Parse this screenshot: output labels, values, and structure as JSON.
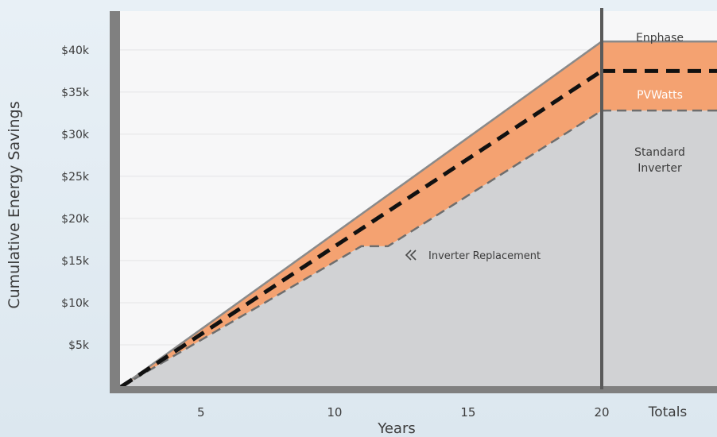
{
  "chart_data": {
    "type": "area",
    "title": "",
    "xlabel": "Years",
    "ylabel": "Cumulative Energy Savings",
    "xlim": [
      2,
      20
    ],
    "ylim": [
      0,
      43000
    ],
    "x_ticks": [
      {
        "value": 5,
        "label": "5"
      },
      {
        "value": 10,
        "label": "10"
      },
      {
        "value": 15,
        "label": "15"
      },
      {
        "value": 20,
        "label": "20"
      }
    ],
    "y_ticks": [
      {
        "value": 5000,
        "label": "$5k"
      },
      {
        "value": 10000,
        "label": "$10k"
      },
      {
        "value": 15000,
        "label": "$15k"
      },
      {
        "value": 20000,
        "label": "$20k"
      },
      {
        "value": 25000,
        "label": "$25k"
      },
      {
        "value": 30000,
        "label": "$30k"
      },
      {
        "value": 35000,
        "label": "$35k"
      },
      {
        "value": 40000,
        "label": "$40k"
      }
    ],
    "totals_label": "Totals",
    "series": [
      {
        "name": "Enphase",
        "style": "solid",
        "x": [
          2,
          20
        ],
        "values": [
          0,
          41000
        ]
      },
      {
        "name": "PVWatts",
        "style": "dashed-black",
        "x": [
          2,
          20
        ],
        "values": [
          0,
          37500
        ]
      },
      {
        "name": "Standard Inverter",
        "style": "dashed-gray",
        "x": [
          2,
          11,
          12,
          20
        ],
        "values": [
          0,
          16700,
          16700,
          32800
        ]
      }
    ],
    "totals": [
      {
        "name": "Enphase",
        "value": 41000
      },
      {
        "name": "PVWatts",
        "value": 37500
      },
      {
        "name": "Standard Inverter",
        "value": 32800
      }
    ],
    "totals_text": {
      "enphase": "Enphase",
      "pvwatts": "PVWatts",
      "standard_line1": "Standard",
      "standard_line2": "Inverter"
    },
    "annotation": {
      "text": "Inverter Replacement",
      "icon": "double-chevron-left-icon"
    },
    "grid": true,
    "colors": {
      "band": "#f4a271",
      "base_area": "#d1d2d4",
      "axis": "#808080",
      "pvwatts_line": "#111111",
      "standard_line": "#6e6e6e",
      "enphase_line": "#8a8a8a"
    }
  }
}
